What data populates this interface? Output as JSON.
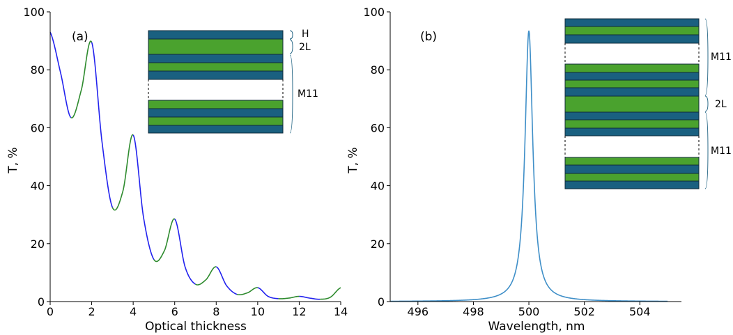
{
  "chart_data": [
    {
      "type": "line",
      "panel_label": "(a)",
      "xlabel": "Optical thickness",
      "ylabel": "T, %",
      "xlim": [
        0,
        14
      ],
      "ylim": [
        0,
        100
      ],
      "x_ticks": [
        "0",
        "2",
        "4",
        "6",
        "8",
        "10",
        "12",
        "14"
      ],
      "y_ticks": [
        "0",
        "20",
        "40",
        "60",
        "80",
        "100"
      ],
      "series": [
        {
          "color_odd_segments": "#2222ee",
          "color_even_segments": "#2e8b2e",
          "description_of_alternation": "blue on intervals [0,1],[2,3],[4,5]...; green on [1,2],[3,4],[5,6]...",
          "x": [
            0,
            0.5,
            1,
            1.5,
            2,
            2.5,
            3,
            3.5,
            4,
            4.5,
            5,
            5.5,
            6,
            6.5,
            7,
            7.5,
            8,
            8.5,
            9,
            9.5,
            10,
            10.5,
            11,
            11.5,
            12,
            12.5,
            13,
            13.5,
            14
          ],
          "y": [
            93,
            79,
            63.5,
            73,
            89.5,
            55,
            32.5,
            38,
            57.5,
            29,
            14.5,
            17.5,
            28.5,
            12,
            6,
            7.5,
            12,
            5.5,
            2.5,
            3,
            4.8,
            1.8,
            1,
            1.2,
            1.8,
            1.2,
            0.8,
            1.5,
            4.8
          ]
        }
      ],
      "inset": {
        "labels": [
          "H",
          "2L",
          "M11"
        ],
        "stack_colors": {
          "H": "#1a6080",
          "L": "#4aa22e"
        }
      }
    },
    {
      "type": "line",
      "panel_label": "(b)",
      "xlabel": "Wavelength, nm",
      "ylabel": "T, %",
      "xlim": [
        495,
        505.5
      ],
      "ylim": [
        0,
        100
      ],
      "x_ticks": [
        "496",
        "498",
        "500",
        "502",
        "504"
      ],
      "y_ticks": [
        "0",
        "20",
        "40",
        "60",
        "80",
        "100"
      ],
      "series": [
        {
          "color": "#3f8fc8",
          "peak_x": 500,
          "peak_y": 93.5,
          "half_width_nm": 0.17,
          "x": [
            495,
            496,
            497,
            498,
            498.5,
            499,
            499.5,
            499.8,
            500,
            500.2,
            500.5,
            501,
            501.5,
            502,
            503,
            504,
            505
          ],
          "y": [
            0.3,
            0.5,
            0.8,
            1.8,
            3,
            6.5,
            27,
            72,
            93.5,
            72,
            27,
            6.5,
            3,
            1.8,
            0.8,
            0.5,
            0.3
          ]
        }
      ],
      "inset": {
        "labels": [
          "M11",
          "2L",
          "M11"
        ],
        "stack_colors": {
          "H": "#1a6080",
          "L": "#4aa22e"
        }
      }
    }
  ]
}
